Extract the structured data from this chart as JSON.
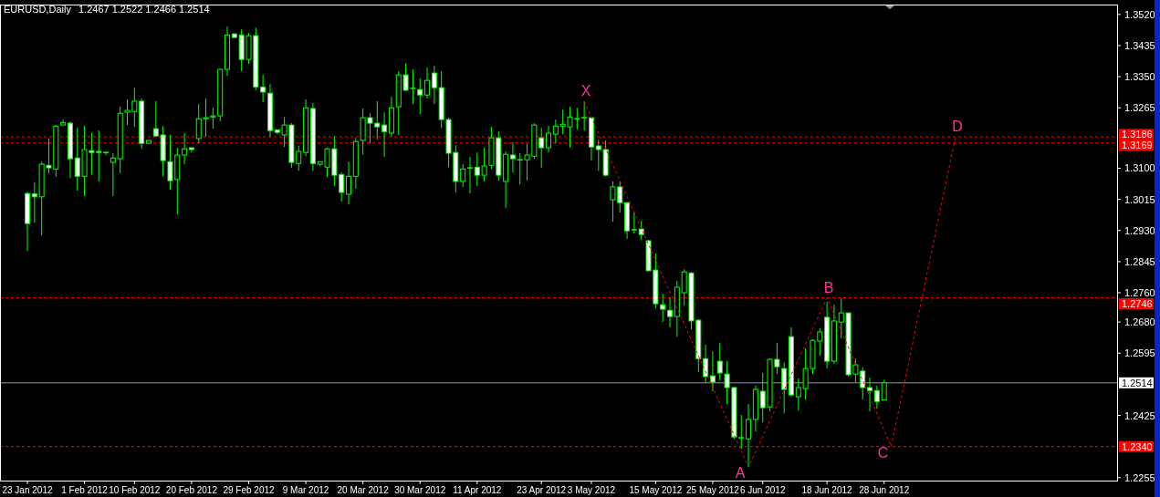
{
  "chart_data": {
    "type": "candlestick",
    "title": "EURUSD,Daily",
    "subtitle": "1.2467 1.2522 1.2466 1.2514",
    "categories": [
      "23 Jan 2012",
      null,
      null,
      null,
      null,
      null,
      null,
      null,
      "1 Feb 2012",
      null,
      null,
      null,
      null,
      null,
      null,
      "10 Feb 2012",
      null,
      null,
      null,
      null,
      null,
      null,
      null,
      "20 Feb 2012",
      null,
      null,
      null,
      null,
      null,
      null,
      null,
      "29 Feb 2012",
      null,
      null,
      null,
      null,
      null,
      null,
      null,
      "9 Mar 2012",
      null,
      null,
      null,
      null,
      null,
      null,
      null,
      "20 Mar 2012",
      null,
      null,
      null,
      null,
      null,
      null,
      null,
      "30 Mar 2012",
      null,
      null,
      null,
      null,
      null,
      null,
      null,
      "11 Apr 2012",
      null,
      null,
      null,
      null,
      null,
      null,
      null,
      null,
      "23 Apr 2012",
      null,
      null,
      null,
      null,
      null,
      null,
      "3 May 2012",
      null,
      null,
      null,
      null,
      null,
      null,
      null,
      null,
      "15 May 2012",
      null,
      null,
      null,
      null,
      null,
      null,
      null,
      "25 May 2012",
      null,
      null,
      null,
      null,
      null,
      null,
      "6 Jun 2012",
      null,
      null,
      null,
      null,
      null,
      null,
      null,
      null,
      "18 Jun 2012",
      null,
      null,
      null,
      null,
      null,
      null,
      null,
      "28 Jun 2012",
      null,
      null,
      null,
      null,
      null,
      null,
      null,
      null,
      null,
      null,
      null,
      null,
      null,
      null,
      null,
      null,
      null,
      null,
      null,
      null,
      null,
      null,
      null,
      null,
      null,
      null,
      null,
      null,
      null,
      null,
      null,
      null
    ],
    "ohlc": [
      [
        1.3031,
        1.3036,
        1.2874,
        1.2949
      ],
      [
        1.303,
        1.3061,
        1.2951,
        1.3022
      ],
      [
        1.3022,
        1.3118,
        1.2917,
        1.3111
      ],
      [
        1.3108,
        1.3181,
        1.3086,
        1.3101
      ],
      [
        1.3098,
        1.3218,
        1.3076,
        1.3215
      ],
      [
        1.3218,
        1.3233,
        1.3218,
        1.3225
      ],
      [
        1.3223,
        1.3228,
        1.3073,
        1.3126
      ],
      [
        1.3128,
        1.321,
        1.3039,
        1.3078
      ],
      [
        1.3078,
        1.3215,
        1.3024,
        1.3151
      ],
      [
        1.3148,
        1.3196,
        1.3083,
        1.3143
      ],
      [
        1.3146,
        1.3203,
        1.3064,
        1.3143
      ],
      [
        1.3143,
        1.3146,
        1.3136,
        1.3143
      ],
      [
        1.3116,
        1.3141,
        1.3024,
        1.3128
      ],
      [
        1.3126,
        1.3268,
        1.3086,
        1.325
      ],
      [
        1.3253,
        1.3288,
        1.3218,
        1.3258
      ],
      [
        1.3255,
        1.332,
        1.3213,
        1.3283
      ],
      [
        1.3283,
        1.329,
        1.3153,
        1.3168
      ],
      [
        1.3168,
        1.3176,
        1.3166,
        1.3176
      ],
      [
        1.3208,
        1.3283,
        1.3188,
        1.3188
      ],
      [
        1.3191,
        1.3215,
        1.3078,
        1.3121
      ],
      [
        1.3118,
        1.3191,
        1.3041,
        1.3066
      ],
      [
        1.3069,
        1.3156,
        1.2974,
        1.3136
      ],
      [
        1.3136,
        1.3196,
        1.3111,
        1.3153
      ],
      [
        1.3156,
        1.3156,
        1.3143,
        1.3151
      ],
      [
        1.3181,
        1.3275,
        1.3168,
        1.3235
      ],
      [
        1.3235,
        1.329,
        1.3186,
        1.3238
      ],
      [
        1.324,
        1.3265,
        1.3208,
        1.3243
      ],
      [
        1.3243,
        1.3372,
        1.3228,
        1.337
      ],
      [
        1.337,
        1.3487,
        1.3352,
        1.3464
      ],
      [
        1.3467,
        1.3467,
        1.3457,
        1.3457
      ],
      [
        1.3464,
        1.3479,
        1.3365,
        1.3397
      ],
      [
        1.3397,
        1.3469,
        1.3385,
        1.3462
      ],
      [
        1.3462,
        1.3484,
        1.3313,
        1.3322
      ],
      [
        1.3322,
        1.3355,
        1.328,
        1.3308
      ],
      [
        1.3305,
        1.333,
        1.3186,
        1.3203
      ],
      [
        1.3205,
        1.3205,
        1.3193,
        1.3198
      ],
      [
        1.3191,
        1.324,
        1.3158,
        1.3218
      ],
      [
        1.3218,
        1.3223,
        1.3101,
        1.3116
      ],
      [
        1.3113,
        1.3161,
        1.3093,
        1.3146
      ],
      [
        1.3143,
        1.3288,
        1.3133,
        1.3265
      ],
      [
        1.3263,
        1.3278,
        1.3093,
        1.3113
      ],
      [
        1.3111,
        1.3118,
        1.3106,
        1.3118
      ],
      [
        1.3103,
        1.3156,
        1.3076,
        1.3153
      ],
      [
        1.3153,
        1.3188,
        1.3051,
        1.3081
      ],
      [
        1.3083,
        1.3088,
        1.3009,
        1.3034
      ],
      [
        1.3029,
        1.3118,
        1.3001,
        1.3078
      ],
      [
        1.3078,
        1.3183,
        1.3044,
        1.3173
      ],
      [
        1.3176,
        1.3263,
        1.3138,
        1.3238
      ],
      [
        1.3238,
        1.325,
        1.3168,
        1.3223
      ],
      [
        1.3223,
        1.3283,
        1.3178,
        1.3213
      ],
      [
        1.3218,
        1.3253,
        1.3131,
        1.32
      ],
      [
        1.3196,
        1.3295,
        1.3186,
        1.3265
      ],
      [
        1.3268,
        1.3365,
        1.3191,
        1.3355
      ],
      [
        1.3355,
        1.3387,
        1.331,
        1.3313
      ],
      [
        1.3318,
        1.337,
        1.3275,
        1.3318
      ],
      [
        1.3315,
        1.3345,
        1.3248,
        1.33
      ],
      [
        1.33,
        1.3375,
        1.329,
        1.334
      ],
      [
        1.336,
        1.338,
        1.3275,
        1.332
      ],
      [
        1.332,
        1.3365,
        1.321,
        1.3233
      ],
      [
        1.3233,
        1.3238,
        1.3103,
        1.3141
      ],
      [
        1.3143,
        1.3163,
        1.3034,
        1.3064
      ],
      [
        1.3064,
        1.3111,
        1.3049,
        1.3098
      ],
      [
        1.3101,
        1.3131,
        1.3031,
        1.3101
      ],
      [
        1.3103,
        1.3143,
        1.3051,
        1.3081
      ],
      [
        1.3081,
        1.3156,
        1.3064,
        1.3106
      ],
      [
        1.3108,
        1.3213,
        1.3098,
        1.3183
      ],
      [
        1.3183,
        1.32,
        1.3066,
        1.3081
      ],
      [
        1.3064,
        1.3146,
        1.2991,
        1.3138
      ],
      [
        1.3136,
        1.3171,
        1.3088,
        1.3126
      ],
      [
        1.3123,
        1.3141,
        1.3056,
        1.3123
      ],
      [
        1.3123,
        1.3166,
        1.3066,
        1.3136
      ],
      [
        1.3133,
        1.3223,
        1.3126,
        1.3218
      ],
      [
        1.3183,
        1.321,
        1.3101,
        1.3156
      ],
      [
        1.3156,
        1.3215,
        1.3143,
        1.3196
      ],
      [
        1.3193,
        1.3233,
        1.3168,
        1.3215
      ],
      [
        1.3215,
        1.326,
        1.3193,
        1.322
      ],
      [
        1.3213,
        1.3268,
        1.3156,
        1.324
      ],
      [
        1.3235,
        1.3265,
        1.3205,
        1.3235
      ],
      [
        1.3238,
        1.3283,
        1.3203,
        1.3238
      ],
      [
        1.3238,
        1.3238,
        1.3121,
        1.3158
      ],
      [
        1.3161,
        1.3178,
        1.3093,
        1.3151
      ],
      [
        1.3151,
        1.3176,
        1.3078,
        1.3081
      ],
      [
        1.3014,
        1.3064,
        1.2954,
        1.3049
      ],
      [
        1.3049,
        1.3064,
        1.2979,
        1.3006
      ],
      [
        1.3006,
        1.3006,
        1.2907,
        1.2929
      ],
      [
        1.2932,
        1.2979,
        1.2922,
        1.2932
      ],
      [
        1.2934,
        1.2956,
        1.2904,
        1.2919
      ],
      [
        1.2902,
        1.2904,
        1.282,
        1.282
      ],
      [
        1.2822,
        1.2867,
        1.2717,
        1.273
      ],
      [
        1.2727,
        1.2757,
        1.268,
        1.2715
      ],
      [
        1.2712,
        1.2747,
        1.2665,
        1.2695
      ],
      [
        1.2695,
        1.2792,
        1.264,
        1.2775
      ],
      [
        1.276,
        1.2824,
        1.2725,
        1.2817
      ],
      [
        1.2814,
        1.2817,
        1.266,
        1.2683
      ],
      [
        1.2685,
        1.2688,
        1.2543,
        1.258
      ],
      [
        1.258,
        1.2618,
        1.2513,
        1.2531
      ],
      [
        1.2533,
        1.26,
        1.2491,
        1.2516
      ],
      [
        1.2573,
        1.2623,
        1.2521,
        1.2541
      ],
      [
        1.2538,
        1.2573,
        1.2456,
        1.2501
      ],
      [
        1.2501,
        1.2503,
        1.2361,
        1.2366
      ],
      [
        1.2364,
        1.2426,
        1.2334,
        1.2364
      ],
      [
        1.2361,
        1.2456,
        1.2284,
        1.2414
      ],
      [
        1.2414,
        1.2506,
        1.2381,
        1.2496
      ],
      [
        1.2491,
        1.2541,
        1.2406,
        1.2446
      ],
      [
        1.2448,
        1.258,
        1.2436,
        1.2578
      ],
      [
        1.2578,
        1.2623,
        1.2538,
        1.2558
      ],
      [
        1.2553,
        1.257,
        1.2431,
        1.2496
      ],
      [
        1.264,
        1.2665,
        1.2476,
        1.2481
      ],
      [
        1.2476,
        1.2526,
        1.2438,
        1.2501
      ],
      [
        1.2498,
        1.2608,
        1.2468,
        1.2553
      ],
      [
        1.2553,
        1.2633,
        1.2538,
        1.263
      ],
      [
        1.2628,
        1.2663,
        1.2588,
        1.2653
      ],
      [
        1.2693,
        1.2735,
        1.2553,
        1.2573
      ],
      [
        1.2573,
        1.2727,
        1.2566,
        1.2683
      ],
      [
        1.268,
        1.2745,
        1.2635,
        1.2705
      ],
      [
        1.2705,
        1.2705,
        1.2531,
        1.2536
      ],
      [
        1.2538,
        1.258,
        1.2516,
        1.2563
      ],
      [
        1.2546,
        1.2556,
        1.2468,
        1.2501
      ],
      [
        1.2501,
        1.2528,
        1.2436,
        1.2493
      ],
      [
        1.2493,
        1.2506,
        1.2443,
        1.2463
      ],
      [
        1.2467,
        1.2522,
        1.2466,
        1.2514
      ],
      null,
      null,
      null,
      null,
      null,
      null,
      null,
      null,
      null,
      null,
      null,
      null,
      null,
      null,
      null,
      null,
      null,
      null,
      null,
      null,
      null,
      null,
      null,
      null,
      null,
      null,
      null,
      null,
      null,
      null,
      null,
      null
    ],
    "series": [
      {
        "type": "line",
        "color": "#ff0000",
        "line_style": "dashed",
        "values": [
          null,
          null,
          null,
          null,
          null,
          null,
          null,
          null,
          null,
          null,
          null,
          null,
          null,
          null,
          null,
          null,
          null,
          null,
          null,
          null,
          null,
          null,
          null,
          null,
          null,
          null,
          null,
          null,
          null,
          null,
          null,
          null,
          null,
          null,
          null,
          null,
          null,
          null,
          null,
          null,
          null,
          null,
          null,
          null,
          null,
          null,
          null,
          null,
          null,
          null,
          null,
          null,
          null,
          null,
          null,
          null,
          null,
          null,
          null,
          null,
          null,
          null,
          null,
          null,
          null,
          null,
          null,
          null,
          null,
          null,
          null,
          null,
          null,
          null,
          null,
          null,
          null,
          null,
          1.3283,
          null,
          null,
          null,
          null,
          null,
          null,
          null,
          null,
          null,
          null,
          null,
          null,
          null,
          null,
          null,
          null,
          null,
          null,
          null,
          null,
          null,
          null,
          1.2284,
          null,
          null,
          null,
          null,
          null,
          null,
          null,
          null,
          null,
          null,
          1.2746,
          null,
          null,
          null,
          null,
          null,
          null,
          null,
          null,
          1.234,
          null,
          null,
          null,
          null,
          null,
          null,
          null,
          null,
          1.3186,
          null,
          null,
          null,
          null,
          null,
          null,
          null,
          null,
          null,
          null,
          null,
          null,
          null,
          null,
          null,
          null,
          null,
          null,
          null,
          null,
          null,
          null
        ],
        "value_labels": [
          null,
          null,
          null,
          null,
          null,
          null,
          null,
          null,
          null,
          null,
          null,
          null,
          null,
          null,
          null,
          null,
          null,
          null,
          null,
          null,
          null,
          null,
          null,
          null,
          null,
          null,
          null,
          null,
          null,
          null,
          null,
          null,
          null,
          null,
          null,
          null,
          null,
          null,
          null,
          null,
          null,
          null,
          null,
          null,
          null,
          null,
          null,
          null,
          null,
          null,
          null,
          null,
          null,
          null,
          null,
          null,
          null,
          null,
          null,
          null,
          null,
          null,
          null,
          null,
          null,
          null,
          null,
          null,
          null,
          null,
          null,
          null,
          null,
          null,
          null,
          null,
          null,
          null,
          "X",
          null,
          null,
          null,
          null,
          null,
          null,
          null,
          null,
          null,
          null,
          null,
          null,
          null,
          null,
          null,
          null,
          null,
          null,
          null,
          null,
          null,
          null,
          "A",
          null,
          null,
          null,
          null,
          null,
          null,
          null,
          null,
          null,
          null,
          "B",
          null,
          null,
          null,
          null,
          null,
          null,
          null,
          null,
          "C",
          null,
          null,
          null,
          null,
          null,
          null,
          null,
          null,
          "D",
          null,
          null,
          null,
          null,
          null,
          null,
          null,
          null,
          null,
          null,
          null,
          null,
          null,
          null,
          null,
          null,
          null,
          null,
          null,
          null,
          null,
          null
        ]
      }
    ],
    "ref_lines": [
      {
        "axis": "y",
        "value": 1.3186,
        "label": "1.3186",
        "color": "#ff0000",
        "line_style": "dashed"
      },
      {
        "axis": "y",
        "value": 1.3169,
        "label": "1.3169",
        "color": "#ff0000",
        "line_style": "dashed"
      },
      {
        "axis": "y",
        "value": 1.2746,
        "label": "1.2746",
        "color": "#ff0000",
        "line_style": "dashed"
      },
      {
        "axis": "y",
        "value": 1.234,
        "label": "1.2340",
        "color": "#ff0000",
        "line_style": "dashed"
      },
      {
        "axis": "y",
        "value": 1.2514,
        "label": "1.2514",
        "color": "#8a9bb0",
        "line_style": "solid"
      }
    ],
    "ylim": [
      1.2247,
      1.3547
    ],
    "yticks": [
      {
        "value": 1.352,
        "label": "1.3520"
      },
      {
        "value": 1.3435,
        "label": "1.3435"
      },
      {
        "value": 1.335,
        "label": "1.3350"
      },
      {
        "value": 1.3265,
        "label": "1.3265"
      },
      {
        "value": 1.31,
        "label": "1.3100"
      },
      {
        "value": 1.3015,
        "label": "1.3015"
      },
      {
        "value": 1.293,
        "label": "1.2930"
      },
      {
        "value": 1.2845,
        "label": "1.2845"
      },
      {
        "value": 1.276,
        "label": "1.2760"
      },
      {
        "value": 1.268,
        "label": "1.2680"
      },
      {
        "value": 1.2595,
        "label": "1.2595"
      },
      {
        "value": 1.2425,
        "label": "1.2425"
      },
      {
        "value": 1.2255,
        "label": "1.2255"
      }
    ]
  }
}
